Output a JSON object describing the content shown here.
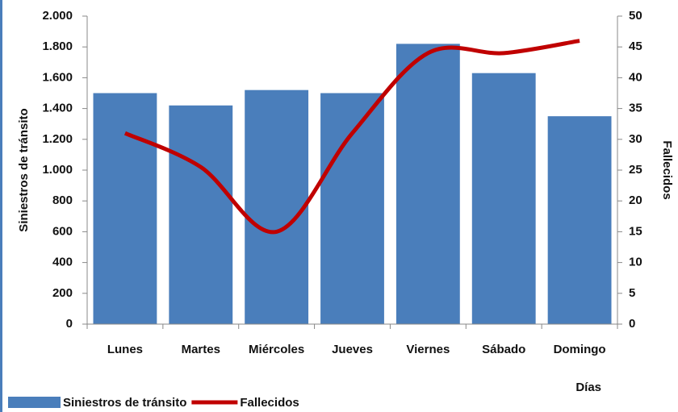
{
  "chart_data": {
    "type": "bar-line",
    "categories": [
      "Lunes",
      "Martes",
      "Miércoles",
      "Jueves",
      "Viernes",
      "Sábado",
      "Domingo"
    ],
    "series": [
      {
        "name": "Siniestros de tránsito",
        "color": "#4a7ebb",
        "type": "bar",
        "values": [
          1500,
          1420,
          1520,
          1500,
          1820,
          1630,
          1350
        ]
      },
      {
        "name": "Fallecidos",
        "color": "#c00000",
        "type": "line",
        "axis": "y2",
        "values": [
          31,
          25.5,
          15,
          31,
          44,
          44,
          46
        ]
      }
    ],
    "ylabel": "Siniestros de tránsito",
    "y2label": "Fallecidos",
    "xlabel": "Días",
    "ylim": [
      0,
      2000
    ],
    "yticks": [
      0,
      200,
      400,
      600,
      800,
      {
        "value": 1000,
        "label": "1.000"
      },
      {
        "value": 1200,
        "label": "1.200"
      },
      {
        "value": 1400,
        "label": "1.400"
      },
      {
        "value": 1600,
        "label": "1.600"
      },
      {
        "value": 1800,
        "label": "1.800"
      },
      {
        "value": 2000,
        "label": "2.000"
      }
    ],
    "y2lim": [
      0,
      50
    ],
    "y2ticks": [
      0,
      5,
      10,
      15,
      20,
      25,
      30,
      35,
      40,
      45,
      50
    ],
    "grid": false,
    "legend": "bottom-left"
  }
}
